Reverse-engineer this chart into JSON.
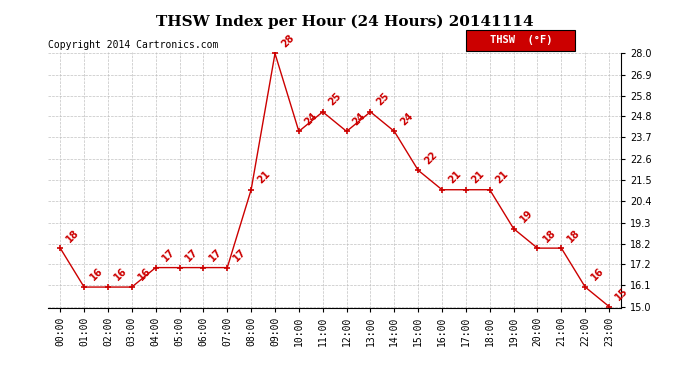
{
  "title": "THSW Index per Hour (24 Hours) 20141114",
  "copyright": "Copyright 2014 Cartronics.com",
  "legend_label": "THSW  (°F)",
  "hours": [
    0,
    1,
    2,
    3,
    4,
    5,
    6,
    7,
    8,
    9,
    10,
    11,
    12,
    13,
    14,
    15,
    16,
    17,
    18,
    19,
    20,
    21,
    22,
    23
  ],
  "values": [
    18,
    16,
    16,
    16,
    17,
    17,
    17,
    17,
    21,
    28,
    24,
    25,
    24,
    25,
    24,
    22,
    21,
    21,
    21,
    19,
    18,
    18,
    16,
    15
  ],
  "ylim_min": 15.0,
  "ylim_max": 28.0,
  "ytick_vals": [
    15.0,
    16.1,
    17.2,
    18.2,
    19.3,
    20.4,
    21.5,
    22.6,
    23.7,
    24.8,
    25.8,
    26.9,
    28.0
  ],
  "line_color": "#cc0000",
  "marker": "+",
  "background_color": "#ffffff",
  "grid_color": "#bbbbbb",
  "title_fontsize": 11,
  "tick_fontsize": 7,
  "annotation_fontsize": 7,
  "copyright_fontsize": 7,
  "legend_fontsize": 7.5
}
